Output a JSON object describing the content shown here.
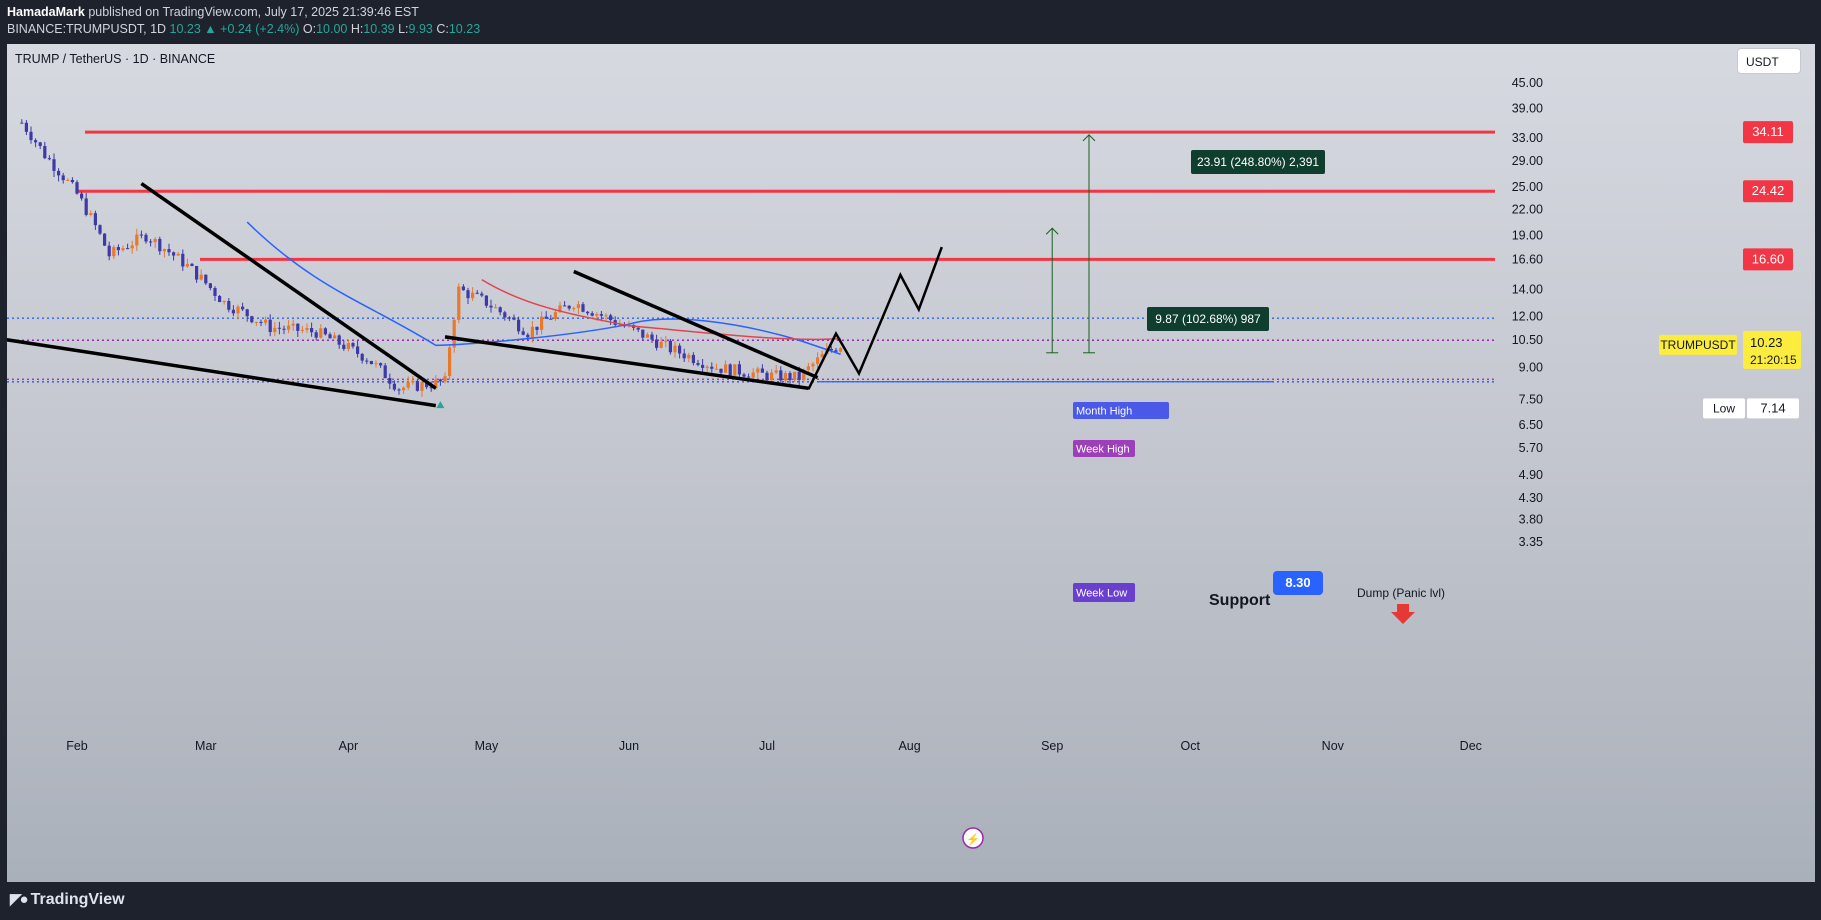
{
  "header": {
    "author": "HamadaMark",
    "published_text": "published on TradingView.com, July 17, 2025 21:39:46 EST",
    "symbol_line": "BINANCE:TRUMPUSDT, 1D",
    "price": "10.23",
    "change": "+0.24 (+2.4%)",
    "o_label": "O:",
    "o_value": "10.00",
    "h_label": "H:",
    "h_value": "10.39",
    "l_label": "L:",
    "l_value": "9.93",
    "c_label": "C:",
    "c_value": "10.23"
  },
  "chart_title": "TRUMP / TetherUS · 1D · BINANCE",
  "currency_button": "USDT",
  "footer": {
    "brand": "TradingView"
  },
  "colors": {
    "up": "#e8792b",
    "down": "#3d3aa8",
    "resistance": "#f23645",
    "blue_ma": "#2962ff",
    "red_ma": "#f23645",
    "green": "#26a69a",
    "price_tag": "#fcec3d"
  },
  "chart_data": {
    "type": "candlestick",
    "y_scale": "log",
    "ylim": [
      3.35,
      52
    ],
    "x_labels": [
      "Feb",
      "Mar",
      "Apr",
      "May",
      "Jun",
      "Jul",
      "Aug",
      "Sep",
      "Oct",
      "Nov",
      "Dec"
    ],
    "y_ticks": [
      "45.00",
      "39.00",
      "33.00",
      "29.00",
      "25.00",
      "22.00",
      "19.00",
      "16.60",
      "14.00",
      "12.00",
      "10.50",
      "9.00",
      "7.50",
      "6.50",
      "5.70",
      "4.90",
      "4.30",
      "3.80",
      "3.35"
    ],
    "price_series_approx": [
      {
        "date": "2025-01-20",
        "close": 36
      },
      {
        "date": "2025-01-25",
        "close": 30
      },
      {
        "date": "2025-02-01",
        "close": 24
      },
      {
        "date": "2025-02-08",
        "close": 17
      },
      {
        "date": "2025-02-16",
        "close": 19
      },
      {
        "date": "2025-02-25",
        "close": 16
      },
      {
        "date": "2025-03-05",
        "close": 13
      },
      {
        "date": "2025-03-15",
        "close": 11.3
      },
      {
        "date": "2025-03-25",
        "close": 11
      },
      {
        "date": "2025-04-05",
        "close": 9.5
      },
      {
        "date": "2025-04-12",
        "close": 8
      },
      {
        "date": "2025-04-22",
        "close": 8.3
      },
      {
        "date": "2025-04-25",
        "close": 14
      },
      {
        "date": "2025-05-01",
        "close": 13
      },
      {
        "date": "2025-05-10",
        "close": 11
      },
      {
        "date": "2025-05-20",
        "close": 13
      },
      {
        "date": "2025-05-30",
        "close": 11.5
      },
      {
        "date": "2025-06-10",
        "close": 10
      },
      {
        "date": "2025-06-20",
        "close": 9
      },
      {
        "date": "2025-07-01",
        "close": 8.6
      },
      {
        "date": "2025-07-08",
        "close": 8.5
      },
      {
        "date": "2025-07-14",
        "close": 9.8
      },
      {
        "date": "2025-07-17",
        "close": 10.23
      }
    ],
    "resistance_levels": [
      {
        "label": "34.11",
        "value": 34.11
      },
      {
        "label": "24.42",
        "value": 24.42
      },
      {
        "label": "16.60",
        "value": 16.6
      }
    ],
    "dotted_levels": [
      {
        "name": "Month High",
        "value": 11.9
      },
      {
        "name": "Week High",
        "value": 10.5
      },
      {
        "name": "Week Low",
        "value": 8.3
      }
    ],
    "annotations": {
      "target1": "9.87 (102.68%) 987",
      "target2": "23.91 (248.80%) 2,391",
      "support": "Support",
      "support_value": "8.30",
      "dump": "Dump (Panic lvl)",
      "month_high": "Month High",
      "week_high": "Week High",
      "week_low": "Week Low"
    },
    "current": {
      "symbol": "TRUMPUSDT",
      "price": "10.23",
      "countdown": "21:20:15"
    },
    "low": {
      "label": "Low",
      "value": "7.14"
    }
  }
}
